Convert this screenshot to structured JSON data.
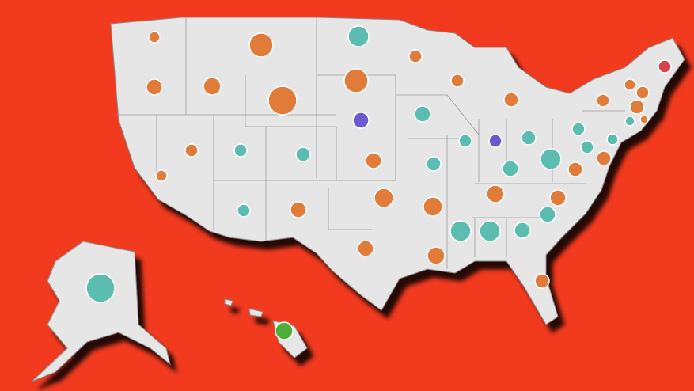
{
  "map": {
    "bubbles": [
      {
        "size": 7,
        "color": "#e07b39"
      },
      {
        "size": 15,
        "color": "#e07b39"
      },
      {
        "size": 13,
        "color": "#5bbcb0"
      },
      {
        "size": 8,
        "color": "#e07b39"
      },
      {
        "size": 10,
        "color": "#e07b39"
      },
      {
        "size": 11,
        "color": "#e07b39"
      },
      {
        "size": 18,
        "color": "#e07b39"
      },
      {
        "size": 15,
        "color": "#e07b39"
      },
      {
        "size": 8,
        "color": "#e07b39"
      },
      {
        "size": 9,
        "color": "#e07b39"
      },
      {
        "size": 10,
        "color": "#6a5acd"
      },
      {
        "size": 10,
        "color": "#5bbcb0"
      },
      {
        "size": 8,
        "color": "#5bbcb0"
      },
      {
        "size": 8,
        "color": "#6a5acd"
      },
      {
        "size": 9,
        "color": "#5bbcb0"
      },
      {
        "size": 8,
        "color": "#5bbcb0"
      },
      {
        "size": 8,
        "color": "#e07b39"
      },
      {
        "size": 7,
        "color": "#e07b39"
      },
      {
        "size": 8,
        "color": "#e07b39"
      },
      {
        "size": 8,
        "color": "#d9404a"
      },
      {
        "size": 9,
        "color": "#e07b39"
      },
      {
        "size": 6,
        "color": "#5bbcb0"
      },
      {
        "size": 5,
        "color": "#e07b39"
      },
      {
        "size": 7,
        "color": "#5bbcb0"
      },
      {
        "size": 8,
        "color": "#5bbcb0"
      },
      {
        "size": 9,
        "color": "#e07b39"
      },
      {
        "size": 8,
        "color": "#e07b39"
      },
      {
        "size": 8,
        "color": "#5bbcb0"
      },
      {
        "size": 9,
        "color": "#5bbcb0"
      },
      {
        "size": 10,
        "color": "#e07b39"
      },
      {
        "size": 9,
        "color": "#5bbcb0"
      },
      {
        "size": 10,
        "color": "#5bbcb0"
      },
      {
        "size": 13,
        "color": "#5bbcb0"
      },
      {
        "size": 9,
        "color": "#e07b39"
      },
      {
        "size": 7,
        "color": "#e07b39"
      },
      {
        "size": 8,
        "color": "#5bbcb0"
      },
      {
        "size": 10,
        "color": "#e07b39"
      },
      {
        "size": 12,
        "color": "#e07b39"
      },
      {
        "size": 12,
        "color": "#e07b39"
      },
      {
        "size": 11,
        "color": "#e07b39"
      },
      {
        "size": 10,
        "color": "#e07b39"
      },
      {
        "size": 10,
        "color": "#5bbcb0"
      },
      {
        "size": 10,
        "color": "#5bbcb0"
      },
      {
        "size": 13,
        "color": "#5bbcb0"
      },
      {
        "size": 13,
        "color": "#5bbcb0"
      },
      {
        "size": 10,
        "color": "#e07b39"
      },
      {
        "size": 11,
        "color": "#e07b39"
      },
      {
        "size": 9,
        "color": "#e07b39"
      },
      {
        "size": 18,
        "color": "#5bbcb0"
      },
      {
        "size": 11,
        "color": "#4caf3a"
      }
    ]
  }
}
